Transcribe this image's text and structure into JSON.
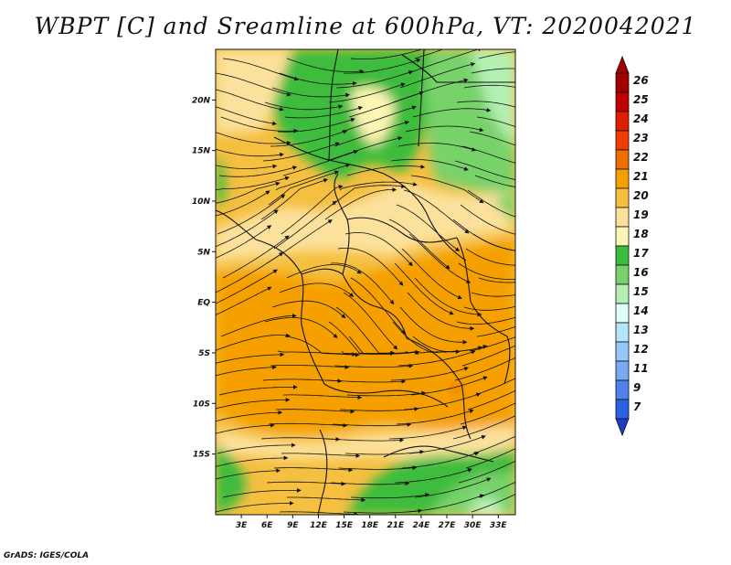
{
  "title": "WBPT [C] and Sreamline at 600hPa, VT: 2020042021",
  "credit": "GrADS: IGES/COLA",
  "map": {
    "lon_range": [
      0,
      35
    ],
    "lat_range": [
      -21,
      25
    ],
    "lat_ticks": [
      {
        "value": 20,
        "label": "20N"
      },
      {
        "value": 15,
        "label": "15N"
      },
      {
        "value": 10,
        "label": "10N"
      },
      {
        "value": 5,
        "label": "5N"
      },
      {
        "value": 0,
        "label": "EQ"
      },
      {
        "value": -5,
        "label": "5S"
      },
      {
        "value": -10,
        "label": "10S"
      },
      {
        "value": -15,
        "label": "15S"
      }
    ],
    "lon_ticks": [
      {
        "value": 3,
        "label": "3E"
      },
      {
        "value": 6,
        "label": "6E"
      },
      {
        "value": 9,
        "label": "9E"
      },
      {
        "value": 12,
        "label": "12E"
      },
      {
        "value": 15,
        "label": "15E"
      },
      {
        "value": 18,
        "label": "18E"
      },
      {
        "value": 21,
        "label": "21E"
      },
      {
        "value": 24,
        "label": "24E"
      },
      {
        "value": 27,
        "label": "27E"
      },
      {
        "value": 30,
        "label": "30E"
      },
      {
        "value": 33,
        "label": "33E"
      }
    ]
  },
  "colorbar": {
    "levels": [
      {
        "label": "26",
        "color": "#a00000"
      },
      {
        "label": "25",
        "color": "#c00000"
      },
      {
        "label": "24",
        "color": "#e01e00"
      },
      {
        "label": "23",
        "color": "#f03c00"
      },
      {
        "label": "22",
        "color": "#f06e00"
      },
      {
        "label": "21",
        "color": "#f5a000"
      },
      {
        "label": "20",
        "color": "#f5bf40"
      },
      {
        "label": "19",
        "color": "#fce19c"
      },
      {
        "label": "18",
        "color": "#fcf5b4"
      },
      {
        "label": "17",
        "color": "#3cbc3c"
      },
      {
        "label": "16",
        "color": "#78d26a"
      },
      {
        "label": "15",
        "color": "#b4f0b4"
      },
      {
        "label": "14",
        "color": "#e0fffa"
      },
      {
        "label": "13",
        "color": "#b4e6fa"
      },
      {
        "label": "12",
        "color": "#96c8fa"
      },
      {
        "label": "11",
        "color": "#78aaf5"
      },
      {
        "label": "9",
        "color": "#5082eb"
      },
      {
        "label": "7",
        "color": "#2864e1"
      }
    ],
    "bottom_color": "#1e3cc8"
  }
}
